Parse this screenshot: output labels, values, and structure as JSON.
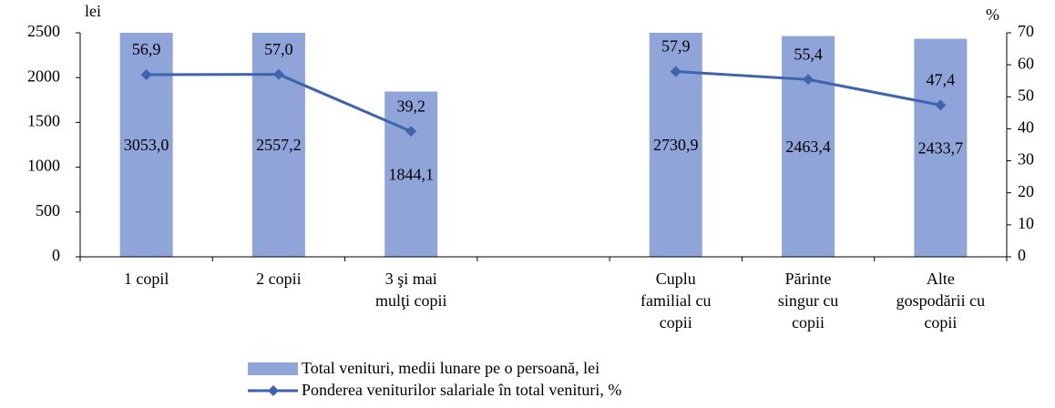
{
  "chart_data": {
    "type": "bar_line",
    "y_label": "lei",
    "y2_label": "%",
    "categories": [
      [
        "1 copil"
      ],
      [
        "2 copii"
      ],
      [
        "3 şi mai",
        "mulţi copii"
      ],
      null,
      [
        "Cuplu",
        "familial cu",
        "copii"
      ],
      [
        "Părinte",
        "singur cu",
        "copii"
      ],
      [
        "Alte",
        "gospodării cu",
        "copii"
      ]
    ],
    "series": [
      {
        "name": "Total venituri, medii lunare pe o persoană, lei",
        "color": "#8fa5d9",
        "kind": "bar",
        "values": [
          3053.0,
          2557.2,
          1844.1,
          null,
          2730.9,
          2463.4,
          2433.7
        ],
        "value_labels": [
          "3053,0",
          "2557,2",
          "1844,1",
          null,
          "2730,9",
          "2463,4",
          "2433,7"
        ]
      },
      {
        "name": "Ponderea veniturilor salariale în total venituri, %",
        "color": "#3e64ad",
        "kind": "line",
        "axis": "y2",
        "values": [
          56.9,
          57.0,
          39.2,
          null,
          57.9,
          55.4,
          47.4
        ],
        "value_labels": [
          "56,9",
          "57,0",
          "39,2",
          null,
          "57,9",
          "55,4",
          "47,4"
        ]
      }
    ],
    "ylim": [
      0,
      2500
    ],
    "yticks": [
      0,
      500,
      1000,
      1500,
      2000,
      2500
    ],
    "y2lim": [
      0,
      70
    ],
    "y2ticks": [
      0,
      10,
      20,
      30,
      40,
      50,
      60,
      70
    ]
  }
}
